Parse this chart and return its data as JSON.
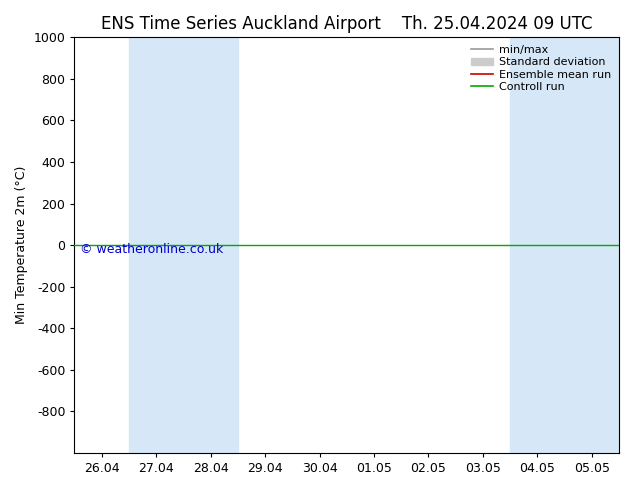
{
  "title_left": "ENS Time Series Auckland Airport",
  "title_right": "Th. 25.04.2024 09 UTC",
  "ylabel": "Min Temperature 2m (°C)",
  "ylim_top": -1000,
  "ylim_bottom": 1000,
  "yticks": [
    -800,
    -600,
    -400,
    -200,
    0,
    200,
    400,
    600,
    800,
    1000
  ],
  "xtick_labels": [
    "26.04",
    "27.04",
    "28.04",
    "29.04",
    "30.04",
    "01.05",
    "02.05",
    "03.05",
    "04.05",
    "05.05"
  ],
  "xtick_positions": [
    0,
    1,
    2,
    3,
    4,
    5,
    6,
    7,
    8,
    9
  ],
  "shaded_ranges": [
    [
      0.5,
      2.5
    ],
    [
      7.5,
      9.5
    ]
  ],
  "shade_color": "#d6e8f7",
  "control_run_y": 0,
  "control_run_color": "#00aa00",
  "ensemble_mean_color": "#cc0000",
  "min_max_color": "#999999",
  "std_dev_color": "#cccccc",
  "watermark_text": "© weatheronline.co.uk",
  "watermark_color": "#0000cc",
  "background_color": "#ffffff",
  "plot_bg_color": "#ffffff",
  "legend_labels": [
    "min/max",
    "Standard deviation",
    "Ensemble mean run",
    "Controll run"
  ],
  "legend_line_colors": [
    "#999999",
    "#cccccc",
    "#cc0000",
    "#00aa00"
  ],
  "title_fontsize": 12,
  "tick_fontsize": 9,
  "ylabel_fontsize": 9,
  "legend_fontsize": 8
}
